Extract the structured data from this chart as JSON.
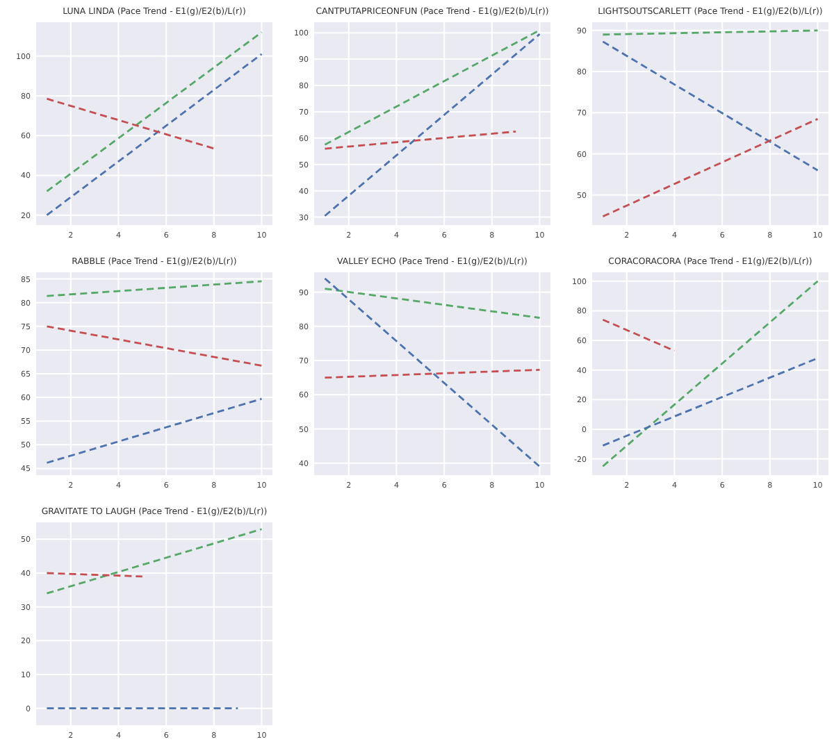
{
  "chart_data": [
    {
      "type": "line",
      "title": "LUNA LINDA (Pace Trend - E1(g)/E2(b)/L(r))",
      "line_style": "dashed",
      "grid": true,
      "xlim": [
        0.55,
        10.45
      ],
      "xticks": [
        2,
        4,
        6,
        8,
        10
      ],
      "ylim": [
        15,
        117
      ],
      "yticks": [
        20,
        40,
        60,
        80,
        100
      ],
      "series": [
        {
          "color": "#55a868",
          "x": [
            1,
            10
          ],
          "values": [
            32,
            112
          ]
        },
        {
          "color": "#4c72b0",
          "x": [
            1,
            10
          ],
          "values": [
            20,
            101
          ]
        },
        {
          "color": "#c44e52",
          "x": [
            1,
            8
          ],
          "values": [
            78.5,
            53.5
          ]
        }
      ]
    },
    {
      "type": "line",
      "title": "CANTPUTAPRICEONFUN (Pace Trend - E1(g)/E2(b)/L(r))",
      "line_style": "dashed",
      "grid": true,
      "xlim": [
        0.55,
        10.45
      ],
      "xticks": [
        2,
        4,
        6,
        8,
        10
      ],
      "ylim": [
        27,
        104
      ],
      "yticks": [
        30,
        40,
        50,
        60,
        70,
        80,
        90,
        100
      ],
      "series": [
        {
          "color": "#55a868",
          "x": [
            1,
            10
          ],
          "values": [
            57.5,
            101
          ]
        },
        {
          "color": "#4c72b0",
          "x": [
            1,
            10
          ],
          "values": [
            30.5,
            99.5
          ]
        },
        {
          "color": "#c44e52",
          "x": [
            1,
            9
          ],
          "values": [
            56,
            62.5
          ]
        }
      ]
    },
    {
      "type": "line",
      "title": "LIGHTSOUTSCARLETT (Pace Trend - E1(g)/E2(b)/L(r))",
      "line_style": "dashed",
      "grid": true,
      "xlim": [
        0.55,
        10.45
      ],
      "xticks": [
        2,
        4,
        6,
        8,
        10
      ],
      "ylim": [
        42.7,
        92
      ],
      "yticks": [
        50,
        60,
        70,
        80,
        90
      ],
      "series": [
        {
          "color": "#55a868",
          "x": [
            1,
            10
          ],
          "values": [
            89,
            90
          ]
        },
        {
          "color": "#4c72b0",
          "x": [
            1,
            10
          ],
          "values": [
            87.3,
            56
          ]
        },
        {
          "color": "#c44e52",
          "x": [
            1,
            10
          ],
          "values": [
            44.8,
            68.5
          ]
        }
      ]
    },
    {
      "type": "line",
      "title": "RABBLE (Pace Trend - E1(g)/E2(b)/L(r))",
      "line_style": "dashed",
      "grid": true,
      "xlim": [
        0.55,
        10.45
      ],
      "xticks": [
        2,
        4,
        6,
        8,
        10
      ],
      "ylim": [
        43.6,
        86.4
      ],
      "yticks": [
        45,
        50,
        55,
        60,
        65,
        70,
        75,
        80,
        85
      ],
      "series": [
        {
          "color": "#55a868",
          "x": [
            1,
            10
          ],
          "values": [
            81.4,
            84.5
          ]
        },
        {
          "color": "#4c72b0",
          "x": [
            1,
            10
          ],
          "values": [
            46.2,
            59.7
          ]
        },
        {
          "color": "#c44e52",
          "x": [
            1,
            10
          ],
          "values": [
            75,
            66.7
          ]
        }
      ]
    },
    {
      "type": "line",
      "title": "VALLEY ECHO (Pace Trend - E1(g)/E2(b)/L(r))",
      "line_style": "dashed",
      "grid": true,
      "xlim": [
        0.55,
        10.45
      ],
      "xticks": [
        2,
        4,
        6,
        8,
        10
      ],
      "ylim": [
        36.5,
        95.8
      ],
      "yticks": [
        40,
        50,
        60,
        70,
        80,
        90
      ],
      "series": [
        {
          "color": "#55a868",
          "x": [
            1,
            10
          ],
          "values": [
            91,
            82.5
          ]
        },
        {
          "color": "#4c72b0",
          "x": [
            1,
            10
          ],
          "values": [
            94,
            39
          ]
        },
        {
          "color": "#c44e52",
          "x": [
            1,
            10
          ],
          "values": [
            65,
            67.3
          ]
        }
      ]
    },
    {
      "type": "line",
      "title": "CORACORACORA (Pace Trend - E1(g)/E2(b)/L(r))",
      "line_style": "dashed",
      "grid": true,
      "xlim": [
        0.55,
        10.45
      ],
      "xticks": [
        2,
        4,
        6,
        8,
        10
      ],
      "ylim": [
        -31,
        106
      ],
      "yticks": [
        -20,
        0,
        20,
        40,
        60,
        80,
        100
      ],
      "series": [
        {
          "color": "#55a868",
          "x": [
            1,
            10
          ],
          "values": [
            -25,
            100
          ]
        },
        {
          "color": "#4c72b0",
          "x": [
            1,
            10
          ],
          "values": [
            -11,
            48
          ]
        },
        {
          "color": "#c44e52",
          "x": [
            1,
            4
          ],
          "values": [
            74,
            53
          ]
        }
      ]
    },
    {
      "type": "line",
      "title": "GRAVITATE TO LAUGH (Pace Trend - E1(g)/E2(b)/L(r))",
      "line_style": "dashed",
      "grid": true,
      "xlim": [
        0.55,
        10.45
      ],
      "xticks": [
        2,
        4,
        6,
        8,
        10
      ],
      "ylim": [
        -5,
        55
      ],
      "yticks": [
        0,
        10,
        20,
        30,
        40,
        50
      ],
      "series": [
        {
          "color": "#55a868",
          "x": [
            1,
            10
          ],
          "values": [
            34,
            53
          ]
        },
        {
          "color": "#4c72b0",
          "x": [
            1,
            9
          ],
          "values": [
            0,
            0
          ]
        },
        {
          "color": "#c44e52",
          "x": [
            1,
            5
          ],
          "values": [
            40,
            39
          ]
        }
      ]
    }
  ]
}
